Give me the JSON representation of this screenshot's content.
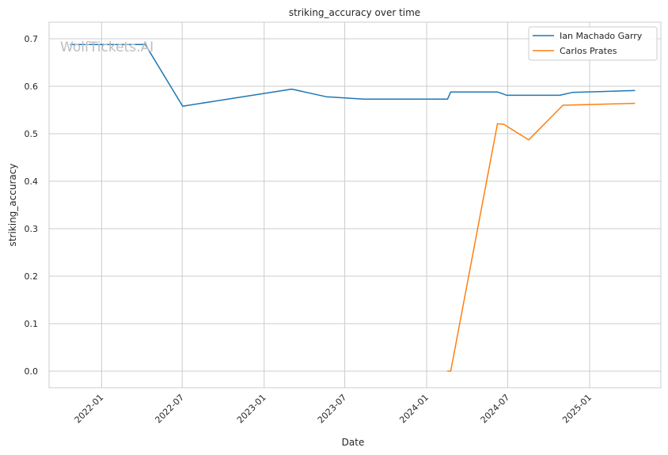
{
  "chart_data": {
    "type": "line",
    "title": "striking_accuracy over time",
    "xlabel": "Date",
    "ylabel": "striking_accuracy",
    "watermark": "WolfTickets.AI",
    "x_axis_type": "date",
    "xlim": [
      "2021-09-05",
      "2025-06-10"
    ],
    "ylim": [
      -0.035,
      0.735
    ],
    "x_ticks": [
      "2022-01",
      "2022-07",
      "2023-01",
      "2023-07",
      "2024-01",
      "2024-07",
      "2025-01"
    ],
    "y_ticks": [
      0.0,
      0.1,
      0.2,
      0.3,
      0.4,
      0.5,
      0.6,
      0.7
    ],
    "y_tick_labels": [
      "0.0",
      "0.1",
      "0.2",
      "0.3",
      "0.4",
      "0.5",
      "0.6",
      "0.7"
    ],
    "grid": true,
    "legend_position": "top-right",
    "series": [
      {
        "name": "Ian Machado Garry",
        "color": "#1f77b4",
        "points": [
          {
            "x": "2021-10-23",
            "y": 0.688
          },
          {
            "x": "2022-04-09",
            "y": 0.688
          },
          {
            "x": "2022-07-02",
            "y": 0.558
          },
          {
            "x": "2023-03-04",
            "y": 0.594
          },
          {
            "x": "2023-05-20",
            "y": 0.578
          },
          {
            "x": "2023-08-12",
            "y": 0.573
          },
          {
            "x": "2024-02-17",
            "y": 0.573
          },
          {
            "x": "2024-02-24",
            "y": 0.588
          },
          {
            "x": "2024-06-08",
            "y": 0.588
          },
          {
            "x": "2024-06-29",
            "y": 0.581
          },
          {
            "x": "2024-10-26",
            "y": 0.581
          },
          {
            "x": "2024-11-23",
            "y": 0.587
          },
          {
            "x": "2025-04-12",
            "y": 0.591
          }
        ]
      },
      {
        "name": "Carlos Prates",
        "color": "#ff7f0e",
        "points": [
          {
            "x": "2024-02-17",
            "y": 0.0
          },
          {
            "x": "2024-02-24",
            "y": 0.0
          },
          {
            "x": "2024-06-08",
            "y": 0.521
          },
          {
            "x": "2024-06-22",
            "y": 0.52
          },
          {
            "x": "2024-08-17",
            "y": 0.487
          },
          {
            "x": "2024-11-02",
            "y": 0.56
          },
          {
            "x": "2025-04-12",
            "y": 0.564
          }
        ]
      }
    ]
  }
}
